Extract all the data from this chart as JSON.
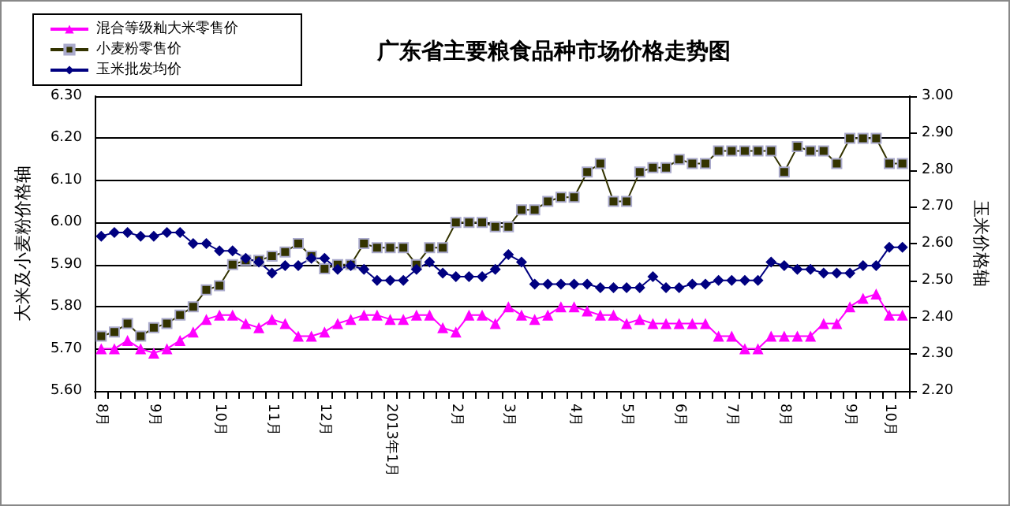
{
  "chart_data": {
    "type": "line",
    "title": "广东省主要粮食品种市场价格走势图",
    "ylabel": "大米及小麦粉价格轴",
    "y2label": "玉米价格轴",
    "categories": [
      "8月",
      null,
      null,
      null,
      "9月",
      null,
      null,
      null,
      null,
      "10月",
      null,
      null,
      null,
      "11月",
      null,
      null,
      null,
      "12月",
      null,
      null,
      null,
      null,
      "2013年1月",
      null,
      null,
      null,
      null,
      "2月",
      null,
      null,
      null,
      "3月",
      null,
      null,
      null,
      null,
      "4月",
      null,
      null,
      null,
      "5月",
      null,
      null,
      null,
      "6月",
      null,
      null,
      null,
      "7月",
      null,
      null,
      null,
      "8月",
      null,
      null,
      null,
      null,
      "9月",
      null,
      null,
      "10月",
      null
    ],
    "series": [
      {
        "name": "混合等级籼大米零售价",
        "color": "#ff00ff",
        "marker": "triangle",
        "values": [
          5.7,
          5.7,
          5.72,
          5.7,
          5.69,
          5.7,
          5.72,
          5.74,
          5.77,
          5.78,
          5.78,
          5.76,
          5.75,
          5.77,
          5.76,
          5.73,
          5.73,
          5.74,
          5.76,
          5.77,
          5.78,
          5.78,
          5.77,
          5.77,
          5.78,
          5.78,
          5.75,
          5.74,
          5.78,
          5.78,
          5.76,
          5.8,
          5.78,
          5.77,
          5.78,
          5.8,
          5.8,
          5.79,
          5.78,
          5.78,
          5.76,
          5.77,
          5.76,
          5.76,
          5.76,
          5.76,
          5.76,
          5.73,
          5.73,
          5.7,
          5.7,
          5.73,
          5.73,
          5.73,
          5.73,
          5.76,
          5.76,
          5.8,
          5.82,
          5.83,
          5.78,
          5.78
        ]
      },
      {
        "name": "小麦粉零售价",
        "color": "#333300",
        "marker": "square",
        "values": [
          5.73,
          5.74,
          5.76,
          5.73,
          5.75,
          5.76,
          5.78,
          5.8,
          5.84,
          5.85,
          5.9,
          5.91,
          5.91,
          5.92,
          5.93,
          5.95,
          5.92,
          5.89,
          5.9,
          5.9,
          5.95,
          5.94,
          5.94,
          5.94,
          5.9,
          5.94,
          5.94,
          6.0,
          6.0,
          6.0,
          5.99,
          5.99,
          6.03,
          6.03,
          6.05,
          6.06,
          6.06,
          6.12,
          6.14,
          6.05,
          6.05,
          6.12,
          6.13,
          6.13,
          6.15,
          6.14,
          6.14,
          6.17,
          6.17,
          6.17,
          6.17,
          6.17,
          6.12,
          6.18,
          6.17,
          6.17,
          6.14,
          6.2,
          6.2,
          6.2,
          6.14,
          6.14
        ]
      },
      {
        "name": "玉米批发均价",
        "color": "#000080",
        "marker": "diamond",
        "axis": "y2",
        "values": [
          2.62,
          2.63,
          2.63,
          2.62,
          2.62,
          2.63,
          2.63,
          2.6,
          2.6,
          2.58,
          2.58,
          2.56,
          2.55,
          2.52,
          2.54,
          2.54,
          2.56,
          2.56,
          2.53,
          2.54,
          2.53,
          2.5,
          2.5,
          2.5,
          2.53,
          2.55,
          2.52,
          2.51,
          2.51,
          2.51,
          2.53,
          2.57,
          2.55,
          2.49,
          2.49,
          2.49,
          2.49,
          2.49,
          2.48,
          2.48,
          2.48,
          2.48,
          2.51,
          2.48,
          2.48,
          2.49,
          2.49,
          2.5,
          2.5,
          2.5,
          2.5,
          2.55,
          2.54,
          2.53,
          2.53,
          2.52,
          2.52,
          2.52,
          2.54,
          2.54,
          2.59,
          2.59
        ]
      }
    ],
    "ylim": [
      5.6,
      6.3
    ],
    "yticks": [
      {
        "value": 5.6,
        "label": "5.60"
      },
      {
        "value": 5.7,
        "label": "5.70"
      },
      {
        "value": 5.8,
        "label": "5.80"
      },
      {
        "value": 5.9,
        "label": "5.90"
      },
      {
        "value": 6.0,
        "label": "6.00"
      },
      {
        "value": 6.1,
        "label": "6.10"
      },
      {
        "value": 6.2,
        "label": "6.20"
      },
      {
        "value": 6.3,
        "label": "6.30"
      }
    ],
    "y2lim": [
      2.2,
      3.0
    ],
    "y2ticks": [
      {
        "value": 2.2,
        "label": "2.20"
      },
      {
        "value": 2.3,
        "label": "2.30"
      },
      {
        "value": 2.4,
        "label": "2.40"
      },
      {
        "value": 2.5,
        "label": "2.50"
      },
      {
        "value": 2.6,
        "label": "2.60"
      },
      {
        "value": 2.7,
        "label": "2.70"
      },
      {
        "value": 2.8,
        "label": "2.80"
      },
      {
        "value": 2.9,
        "label": "2.90"
      },
      {
        "value": 3.0,
        "label": "3.00"
      }
    ],
    "grid": "y",
    "legend": "top left",
    "line_style": "solid"
  }
}
